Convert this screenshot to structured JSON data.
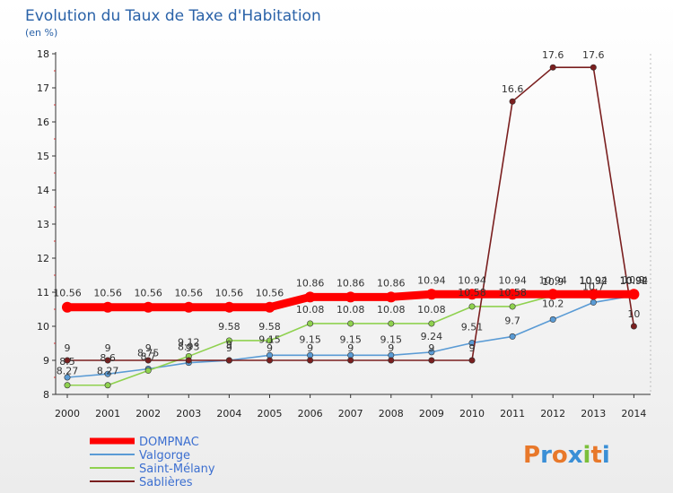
{
  "chart_data": {
    "type": "line",
    "title": "Evolution du Taux de Taxe d'Habitation",
    "subtitle": "(en %)",
    "xlabel": "",
    "ylabel": "",
    "ylim": [
      8,
      18
    ],
    "yticks": [
      "8",
      "9",
      "10",
      "11",
      "12",
      "13",
      "14",
      "15",
      "16",
      "17",
      "18"
    ],
    "categories": [
      "2000",
      "2001",
      "2002",
      "2003",
      "2004",
      "2005",
      "2006",
      "2007",
      "2008",
      "2009",
      "2010",
      "2011",
      "2012",
      "2013",
      "2014"
    ],
    "grid": false,
    "legend_position": "bottom-left",
    "series": [
      {
        "name": "DOMPNAC",
        "color": "#ff0000",
        "values": [
          10.56,
          10.56,
          10.56,
          10.56,
          10.56,
          10.56,
          10.86,
          10.86,
          10.86,
          10.94,
          10.94,
          10.94,
          10.94,
          10.94,
          10.94
        ],
        "labels": [
          "10.56",
          "10.56",
          "10.56",
          "10.56",
          "10.56",
          "10.56",
          "10.86",
          "10.86",
          "10.86",
          "10.94",
          "10.94",
          "10.94",
          "10.94",
          "10.94",
          "10.94"
        ]
      },
      {
        "name": "Valgorge",
        "color": "#5a9bd5",
        "values": [
          8.5,
          8.6,
          8.75,
          8.93,
          9.0,
          9.15,
          9.15,
          9.15,
          9.15,
          9.24,
          9.51,
          9.7,
          10.2,
          10.7,
          10.9
        ],
        "labels": [
          "8.5",
          "8.6",
          "8.75",
          "8.93",
          "9",
          "9.15",
          "9.15",
          "9.15",
          "9.15",
          "9.24",
          "9.51",
          "9.7",
          "10.2",
          "10.7",
          "10.9"
        ]
      },
      {
        "name": "Saint-Mélany",
        "color": "#8fd14f",
        "values": [
          8.27,
          8.27,
          8.7,
          9.12,
          9.58,
          9.58,
          10.08,
          10.08,
          10.08,
          10.08,
          10.58,
          10.58,
          10.9,
          10.92,
          10.92
        ],
        "labels": [
          "8.27",
          "8.27",
          "8.7",
          "9.12",
          "9.58",
          "9.58",
          "10.08",
          "10.08",
          "10.08",
          "10.08",
          "10.58",
          "10.58",
          "10.9",
          "10.92",
          "10.92"
        ]
      },
      {
        "name": "Sablières",
        "color": "#7a1f1f",
        "values": [
          9,
          9,
          9,
          9,
          9,
          9,
          9,
          9,
          9,
          9,
          9,
          16.6,
          17.6,
          17.6,
          10
        ],
        "labels": [
          "9",
          "9",
          "9",
          "9",
          "9",
          "9",
          "9",
          "9",
          "9",
          "9",
          "9",
          "16.6",
          "17.6",
          "17.6",
          "10"
        ]
      }
    ]
  },
  "logo": {
    "text": "Proxiti"
  }
}
